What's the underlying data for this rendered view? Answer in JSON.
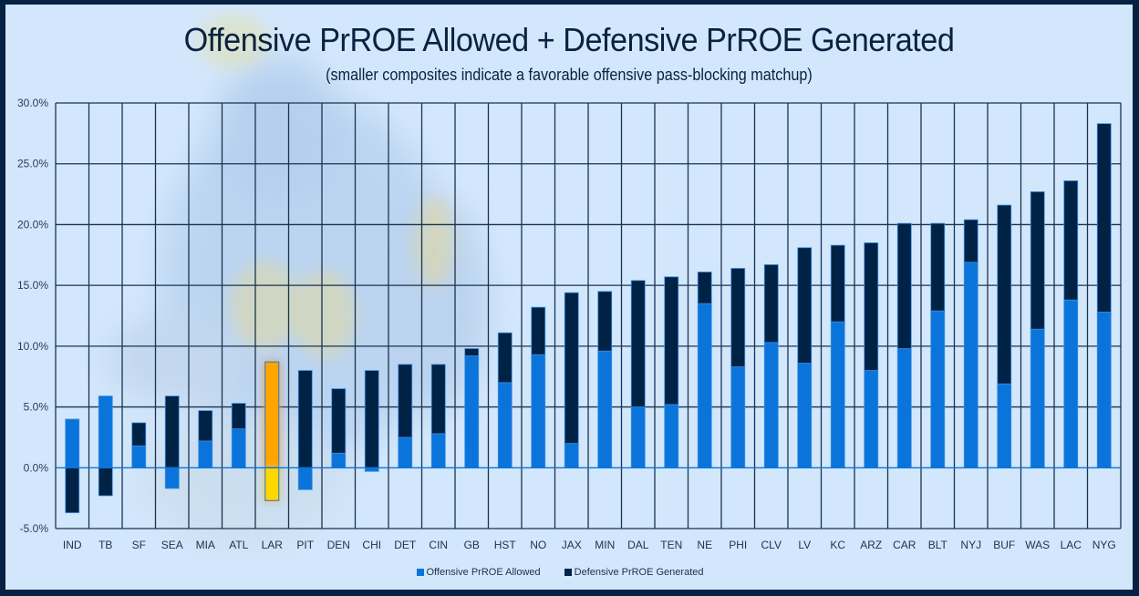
{
  "chart_data": {
    "type": "bar",
    "stacked": true,
    "title": "Offensive PrROE Allowed + Defensive PrROE Generated",
    "subtitle": "(smaller composites indicate a favorable offensive pass-blocking matchup)",
    "xlabel": "",
    "ylabel": "",
    "ylim": [
      -5,
      30
    ],
    "y_ticks": [
      -5,
      0,
      5,
      10,
      15,
      20,
      25,
      30
    ],
    "y_tick_format": "percent_1dp",
    "grid": true,
    "legend_position": "bottom",
    "categories": [
      "IND",
      "TB",
      "SF",
      "SEA",
      "MIA",
      "ATL",
      "LAR",
      "PIT",
      "DEN",
      "CHI",
      "DET",
      "CIN",
      "GB",
      "HST",
      "NO",
      "JAX",
      "MIN",
      "DAL",
      "TEN",
      "NE",
      "PHI",
      "CLV",
      "LV",
      "KC",
      "ARZ",
      "CAR",
      "BLT",
      "NYJ",
      "BUF",
      "WAS",
      "LAC",
      "NYG"
    ],
    "series": [
      {
        "name": "Offensive PrROE Allowed",
        "color": "#0a74da",
        "values": [
          4.0,
          5.9,
          1.8,
          -1.7,
          2.2,
          3.2,
          8.7,
          -1.8,
          1.2,
          -0.3,
          2.5,
          2.8,
          9.2,
          7.0,
          9.3,
          2.0,
          9.6,
          5.0,
          5.2,
          13.5,
          8.3,
          10.3,
          8.6,
          12.0,
          8.0,
          9.8,
          12.9,
          16.9,
          6.9,
          11.4,
          13.8,
          12.8
        ]
      },
      {
        "name": "Defensive PrROE Generated",
        "color": "#002244",
        "values": [
          -3.7,
          -2.3,
          1.9,
          5.9,
          2.5,
          2.1,
          -2.7,
          8.0,
          5.3,
          8.0,
          6.0,
          5.7,
          0.6,
          4.1,
          3.9,
          12.4,
          4.9,
          10.4,
          10.5,
          2.6,
          8.1,
          6.4,
          9.5,
          6.3,
          10.5,
          10.3,
          7.2,
          3.5,
          14.7,
          11.3,
          9.8,
          15.5
        ]
      }
    ],
    "highlight": {
      "category": "LAR",
      "positive_color": "#ffa500",
      "negative_color": "#ffd700",
      "outline_color": "#4a7fae"
    }
  },
  "legend": {
    "items": [
      {
        "label": "Offensive PrROE Allowed",
        "color": "#0a74da"
      },
      {
        "label": "Defensive PrROE Generated",
        "color": "#002244"
      }
    ]
  },
  "colors": {
    "frame_border": "#062243",
    "plot_background": "#d3e7fc",
    "gridline": "#1a3350",
    "zero_line": "#0a74da"
  }
}
